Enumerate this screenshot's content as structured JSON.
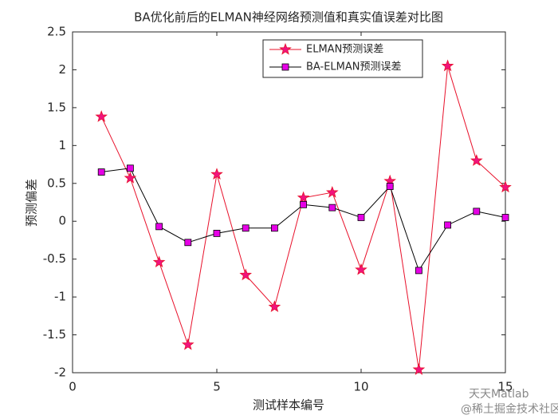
{
  "chart_data": {
    "type": "line",
    "title": "BA优化前后的ELMAN神经网络预测值和真实值误差对比图",
    "x_label": "测试样本编号",
    "y_label": "预测偏差",
    "x": [
      1,
      2,
      3,
      4,
      5,
      6,
      7,
      8,
      9,
      10,
      11,
      12,
      13,
      14,
      15
    ],
    "series": [
      {
        "name": "ELMAN预测误差",
        "color": "#e8102a",
        "marker": "star",
        "marker_color": "#f0147e",
        "values": [
          1.38,
          0.57,
          -0.54,
          -1.63,
          0.62,
          -0.71,
          -1.13,
          0.31,
          0.38,
          -0.64,
          0.53,
          -1.96,
          2.05,
          0.8,
          0.45
        ]
      },
      {
        "name": "BA-ELMAN预测误差",
        "color": "#000000",
        "marker": "square",
        "marker_color": "#e600e6",
        "values": [
          0.65,
          0.7,
          -0.07,
          -0.28,
          -0.16,
          -0.09,
          -0.09,
          0.22,
          0.18,
          0.05,
          0.46,
          -0.65,
          -0.05,
          0.13,
          0.05
        ]
      }
    ],
    "xlim": [
      0,
      15
    ],
    "xticks": [
      0,
      5,
      10,
      15
    ],
    "ylim": [
      -2,
      2.5
    ],
    "yticks": [
      -2,
      -1.5,
      -1,
      -0.5,
      0,
      0.5,
      1,
      1.5,
      2,
      2.5
    ],
    "legend": "top-center",
    "watermark": [
      "天天Matlab",
      "@稀土掘金技术社区"
    ]
  }
}
